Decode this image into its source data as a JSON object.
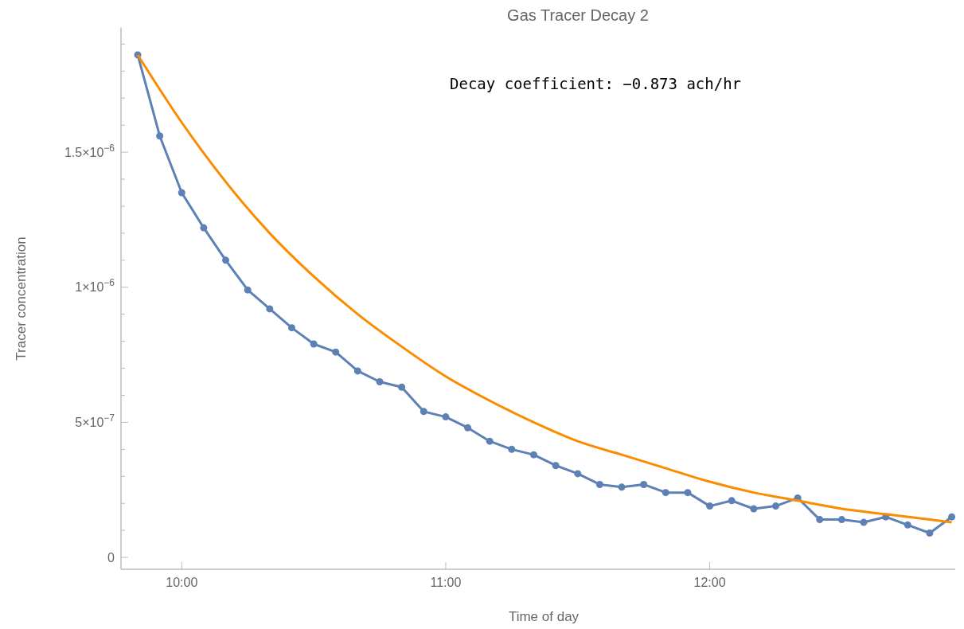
{
  "chart_data": {
    "type": "line",
    "title": "Gas Tracer Decay 2",
    "xlabel": "Time of day",
    "ylabel": "Tracer concentration",
    "annotations": [
      "Decay coefficient: −0.873 ach/hr"
    ],
    "xlim": [
      9.77,
      12.93
    ],
    "ylim": [
      -4.4e-08,
      1.96e-06
    ],
    "xticks": [
      {
        "value": 10,
        "label": "10:00"
      },
      {
        "value": 11,
        "label": "11:00"
      },
      {
        "value": 12,
        "label": "12:00"
      }
    ],
    "yticks": [
      {
        "value": 0,
        "label": "0"
      },
      {
        "value": 1e-07,
        "label": null
      },
      {
        "value": 2e-07,
        "label": null
      },
      {
        "value": 3e-07,
        "label": null
      },
      {
        "value": 4e-07,
        "label": null
      },
      {
        "value": 5e-07,
        "label": "5×10$^{−7}$"
      },
      {
        "value": 6e-07,
        "label": null
      },
      {
        "value": 7e-07,
        "label": null
      },
      {
        "value": 8e-07,
        "label": null
      },
      {
        "value": 9e-07,
        "label": null
      },
      {
        "value": 1e-06,
        "label": "1×10$^{−6}$"
      },
      {
        "value": 1.1e-06,
        "label": null
      },
      {
        "value": 1.2e-06,
        "label": null
      },
      {
        "value": 1.3e-06,
        "label": null
      },
      {
        "value": 1.4e-06,
        "label": null
      },
      {
        "value": 1.5e-06,
        "label": "1.5×10$^{−6}$"
      },
      {
        "value": 1.6e-06,
        "label": null
      },
      {
        "value": 1.7e-06,
        "label": null
      },
      {
        "value": 1.8e-06,
        "label": null
      },
      {
        "value": 1.9e-06,
        "label": null
      }
    ],
    "grid": false,
    "series": [
      {
        "color": "#5e81b5",
        "marker": "circle",
        "x": [
          9.8333,
          9.9167,
          10,
          10.0833,
          10.1667,
          10.25,
          10.3333,
          10.4167,
          10.5,
          10.5833,
          10.6667,
          10.75,
          10.8333,
          10.9167,
          11,
          11.0833,
          11.1667,
          11.25,
          11.3333,
          11.4167,
          11.5,
          11.5833,
          11.6667,
          11.75,
          11.8333,
          11.9167,
          12,
          12.0833,
          12.1667,
          12.25,
          12.3333,
          12.4167,
          12.5,
          12.5833,
          12.6667,
          12.75,
          12.8333,
          12.9167
        ],
        "values": [
          1.86e-06,
          1.56e-06,
          1.35e-06,
          1.22e-06,
          1.1e-06,
          9.9e-07,
          9.2e-07,
          8.5e-07,
          7.9e-07,
          7.6e-07,
          6.9e-07,
          6.5e-07,
          6.3e-07,
          5.4e-07,
          5.2e-07,
          4.8e-07,
          4.3e-07,
          4e-07,
          3.8e-07,
          3.4e-07,
          3.1e-07,
          2.7e-07,
          2.6e-07,
          2.7e-07,
          2.4e-07,
          2.4e-07,
          1.9e-07,
          2.1e-07,
          1.8e-07,
          1.9e-07,
          2.2e-07,
          1.4e-07,
          1.4e-07,
          1.3e-07,
          1.5e-07,
          1.2e-07,
          9e-08,
          1.5e-07
        ]
      },
      {
        "color": "#fb8c00",
        "marker": "none",
        "x": [
          9.8333,
          10,
          10.1667,
          10.3333,
          10.5,
          10.6667,
          10.8333,
          11,
          11.1667,
          11.3333,
          11.5,
          11.6667,
          11.8333,
          12,
          12.1667,
          12.3333,
          12.5,
          12.6667,
          12.8333,
          12.9167
        ],
        "values": [
          1.86e-06,
          1.61e-06,
          1.39e-06,
          1.2e-06,
          1.04e-06,
          9e-07,
          7.8e-07,
          6.7e-07,
          5.8e-07,
          5e-07,
          4.3e-07,
          3.8e-07,
          3.3e-07,
          2.8e-07,
          2.4e-07,
          2.1e-07,
          1.8e-07,
          1.6e-07,
          1.4e-07,
          1.3e-07
        ]
      }
    ]
  }
}
